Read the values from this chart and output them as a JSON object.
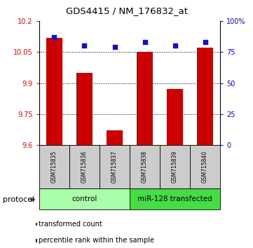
{
  "title": "GDS4415 / NM_176832_at",
  "samples": [
    "GSM715835",
    "GSM715836",
    "GSM715837",
    "GSM715838",
    "GSM715839",
    "GSM715840"
  ],
  "red_values": [
    10.12,
    9.95,
    9.67,
    10.05,
    9.87,
    10.07
  ],
  "blue_values": [
    87,
    80,
    79,
    83,
    80,
    83
  ],
  "ylim_left": [
    9.6,
    10.2
  ],
  "ylim_right": [
    0,
    100
  ],
  "yticks_left": [
    9.6,
    9.75,
    9.9,
    10.05,
    10.2
  ],
  "ytick_labels_left": [
    "9.6",
    "9.75",
    "9.9",
    "10.05",
    "10.2"
  ],
  "yticks_right": [
    0,
    25,
    50,
    75,
    100
  ],
  "ytick_labels_right": [
    "0",
    "25",
    "50",
    "75",
    "100%"
  ],
  "dotted_lines": [
    9.75,
    9.9,
    10.05
  ],
  "bar_color": "#cc0000",
  "blue_color": "#1111cc",
  "bar_width": 0.55,
  "group_control_color": "#aaffaa",
  "group_transfected_color": "#44dd44",
  "groups": [
    {
      "label": "control",
      "indices": [
        0,
        1,
        2
      ],
      "color": "#aaffaa"
    },
    {
      "label": "miR-128 transfected",
      "indices": [
        3,
        4,
        5
      ],
      "color": "#44dd44"
    }
  ],
  "protocol_label": "protocol",
  "legend_red": "transformed count",
  "legend_blue": "percentile rank within the sample"
}
